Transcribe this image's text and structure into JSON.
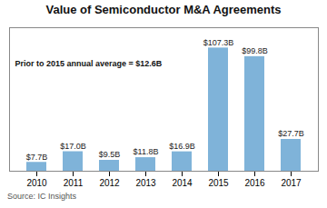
{
  "chart_data": {
    "type": "bar",
    "title": "Value of Semiconductor M&A Agreements",
    "categories": [
      "2010",
      "2011",
      "2012",
      "2013",
      "2014",
      "2015",
      "2016",
      "2017"
    ],
    "values": [
      7.7,
      17.0,
      9.5,
      11.8,
      16.9,
      107.3,
      99.8,
      27.7
    ],
    "value_labels": [
      "$7.7B",
      "$17.0B",
      "$9.5B",
      "$11.8B",
      "$16.9B",
      "$107.3B",
      "$99.8B",
      "$27.7B"
    ],
    "data_labels": true,
    "color": "#7FB3D9",
    "ylim": [
      0,
      125
    ],
    "tick_labels": "x",
    "annotation": "Prior to 2015 annual average = $12.6B",
    "source": "Source: IC Insights"
  }
}
